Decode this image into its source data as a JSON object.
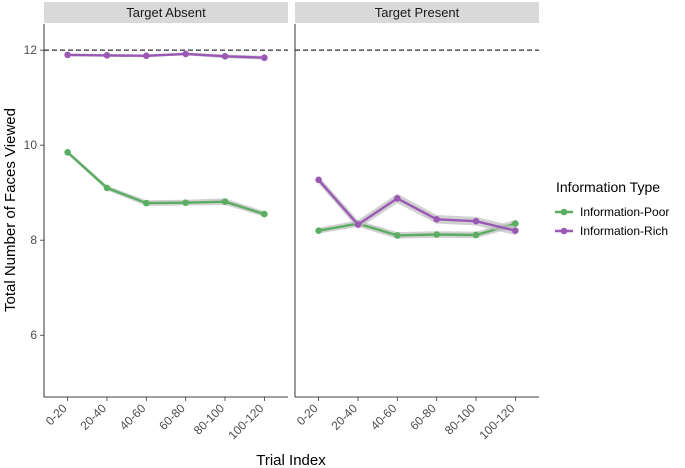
{
  "chart_data": {
    "type": "line",
    "xlabel": "Trial Index",
    "ylabel": "Total Number of Faces Viewed",
    "categories": [
      "0-20",
      "20-40",
      "40-60",
      "60-80",
      "80-100",
      "100-120"
    ],
    "yticks": [
      6,
      8,
      10,
      12
    ],
    "ylim": [
      4.7,
      12.55
    ],
    "reference_line": 12,
    "legend": {
      "title": "Information Type",
      "entries": [
        "Information-Poor",
        "Information-Rich"
      ],
      "placement": "right"
    },
    "colors": {
      "Information-Poor": "#5aae61",
      "Information-Rich": "#9b59b6",
      "strip": "#d9d9d9",
      "ribbon": "#bdbdbd"
    },
    "panels": [
      {
        "title": "Target Absent",
        "series": [
          {
            "name": "Information-Poor",
            "values": [
              9.85,
              9.1,
              8.78,
              8.79,
              8.81,
              8.55
            ],
            "band": [
              0.04,
              0.05,
              0.06,
              0.06,
              0.07,
              0.06
            ]
          },
          {
            "name": "Information-Rich",
            "values": [
              11.9,
              11.89,
              11.88,
              11.92,
              11.87,
              11.84
            ],
            "band": [
              0.03,
              0.03,
              0.03,
              0.03,
              0.04,
              0.04
            ]
          }
        ]
      },
      {
        "title": "Target Present",
        "series": [
          {
            "name": "Information-Poor",
            "values": [
              8.2,
              8.35,
              8.1,
              8.12,
              8.11,
              8.35
            ],
            "band": [
              0.06,
              0.07,
              0.07,
              0.07,
              0.07,
              0.08
            ]
          },
          {
            "name": "Information-Rich",
            "values": [
              9.27,
              8.33,
              8.88,
              8.44,
              8.4,
              8.2
            ],
            "band": [
              0.08,
              0.09,
              0.1,
              0.09,
              0.09,
              0.09
            ]
          }
        ]
      }
    ]
  }
}
